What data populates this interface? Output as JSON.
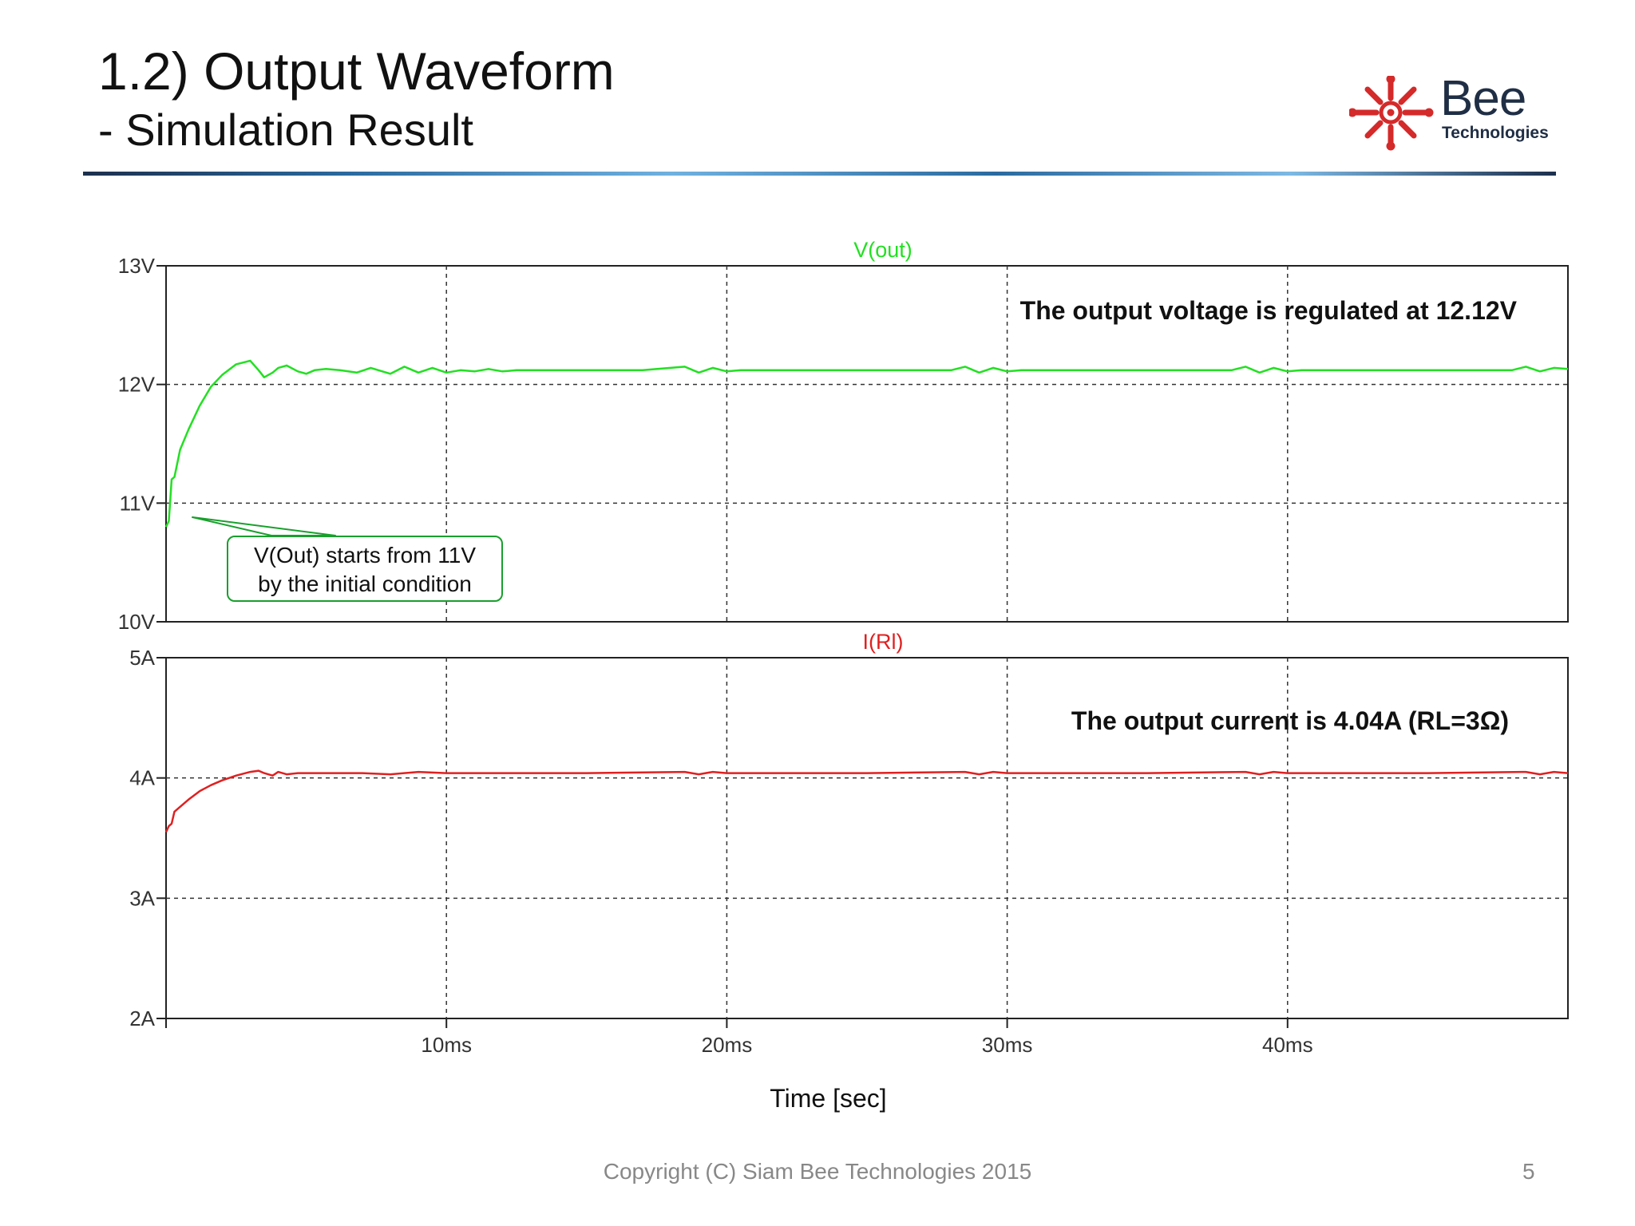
{
  "slide": {
    "title": "1.2) Output Waveform",
    "subtitle": "- Simulation Result",
    "logo_brand": "Bee",
    "logo_sub": "Technologies",
    "copyright": "Copyright (C) Siam Bee Technologies 2015",
    "page_number": "5"
  },
  "colors": {
    "voltage_trace": "#22e022",
    "current_trace": "#e02020",
    "annotation_border": "#18a02c",
    "logo_red": "#d42a2a",
    "text_dark": "#1f2e45"
  },
  "chart_data": [
    {
      "type": "line",
      "title": "V(out)",
      "xlabel": "Time [sec]",
      "ylabel": "",
      "xlim": [
        0,
        50
      ],
      "ylim": [
        10,
        13
      ],
      "grid": true,
      "x_ticks": [
        {
          "value": 10,
          "label": "10ms"
        },
        {
          "value": 20,
          "label": "20ms"
        },
        {
          "value": 30,
          "label": "30ms"
        },
        {
          "value": 40,
          "label": "40ms"
        }
      ],
      "y_ticks": [
        {
          "value": 13,
          "label": "13V"
        },
        {
          "value": 12,
          "label": "12V"
        },
        {
          "value": 11,
          "label": "11V"
        },
        {
          "value": 10,
          "label": "10V"
        }
      ],
      "series": [
        {
          "name": "V(out)",
          "color": "#22e022",
          "x": [
            0,
            0.1,
            0.2,
            0.3,
            0.5,
            0.8,
            1.2,
            1.6,
            2.0,
            2.5,
            3.0,
            3.3,
            3.5,
            3.8,
            4.0,
            4.3,
            4.7,
            5.0,
            5.3,
            5.7,
            6.2,
            6.8,
            7.3,
            8.0,
            8.5,
            9.0,
            9.5,
            10.0,
            10.5,
            11.0,
            11.5,
            12.0,
            12.5,
            13.0,
            14.0,
            15.0,
            17.0,
            18.5,
            19.0,
            19.5,
            20.0,
            20.5,
            21.0,
            22.0,
            25.0,
            28.0,
            28.5,
            29.0,
            29.5,
            30.0,
            30.5,
            31.0,
            32.0,
            35.0,
            38.0,
            38.5,
            39.0,
            39.5,
            40.0,
            40.5,
            41.0,
            42.0,
            45.0,
            48.0,
            48.5,
            49.0,
            49.5,
            50.0
          ],
          "values": [
            10.8,
            10.85,
            11.2,
            11.22,
            11.45,
            11.62,
            11.82,
            11.98,
            12.08,
            12.17,
            12.2,
            12.12,
            12.06,
            12.1,
            12.14,
            12.16,
            12.11,
            12.09,
            12.12,
            12.13,
            12.12,
            12.1,
            12.14,
            12.09,
            12.15,
            12.1,
            12.14,
            12.1,
            12.12,
            12.11,
            12.13,
            12.11,
            12.12,
            12.12,
            12.12,
            12.12,
            12.12,
            12.15,
            12.1,
            12.14,
            12.11,
            12.12,
            12.12,
            12.12,
            12.12,
            12.12,
            12.15,
            12.1,
            12.14,
            12.11,
            12.12,
            12.12,
            12.12,
            12.12,
            12.12,
            12.15,
            12.1,
            12.14,
            12.11,
            12.12,
            12.12,
            12.12,
            12.12,
            12.12,
            12.15,
            12.11,
            12.14,
            12.13
          ]
        }
      ],
      "annotations": [
        "The output voltage is regulated at 12.12V",
        "V(Out) starts from 11V",
        "by the initial condition"
      ]
    },
    {
      "type": "line",
      "title": "I(Rl)",
      "xlabel": "Time [sec]",
      "ylabel": "",
      "xlim": [
        0,
        50
      ],
      "ylim": [
        2,
        5
      ],
      "grid": true,
      "x_ticks": [
        {
          "value": 10,
          "label": "10ms"
        },
        {
          "value": 20,
          "label": "20ms"
        },
        {
          "value": 30,
          "label": "30ms"
        },
        {
          "value": 40,
          "label": "40ms"
        }
      ],
      "y_ticks": [
        {
          "value": 5,
          "label": "5A"
        },
        {
          "value": 4,
          "label": "4A"
        },
        {
          "value": 3,
          "label": "3A"
        },
        {
          "value": 2,
          "label": "2A"
        }
      ],
      "series": [
        {
          "name": "I(Rl)",
          "color": "#e02020",
          "x": [
            0,
            0.1,
            0.2,
            0.3,
            0.5,
            0.8,
            1.2,
            1.6,
            2.0,
            2.5,
            3.0,
            3.3,
            3.5,
            3.8,
            4.0,
            4.3,
            4.7,
            5.0,
            5.5,
            6.0,
            7.0,
            8.0,
            9.0,
            10.0,
            11.0,
            12.0,
            15.0,
            18.5,
            19.0,
            19.5,
            20.0,
            21.0,
            25.0,
            28.5,
            29.0,
            29.5,
            30.0,
            31.0,
            35.0,
            38.5,
            39.0,
            39.5,
            40.0,
            41.0,
            45.0,
            48.5,
            49.0,
            49.5,
            50.0
          ],
          "values": [
            3.55,
            3.6,
            3.62,
            3.72,
            3.76,
            3.82,
            3.89,
            3.94,
            3.98,
            4.02,
            4.05,
            4.06,
            4.04,
            4.02,
            4.05,
            4.03,
            4.04,
            4.04,
            4.04,
            4.04,
            4.04,
            4.03,
            4.05,
            4.04,
            4.04,
            4.04,
            4.04,
            4.05,
            4.03,
            4.05,
            4.04,
            4.04,
            4.04,
            4.05,
            4.03,
            4.05,
            4.04,
            4.04,
            4.04,
            4.05,
            4.03,
            4.05,
            4.04,
            4.04,
            4.04,
            4.05,
            4.03,
            4.05,
            4.04
          ]
        }
      ],
      "annotations": [
        "The output current is 4.04A (RL=3Ω)"
      ]
    }
  ]
}
